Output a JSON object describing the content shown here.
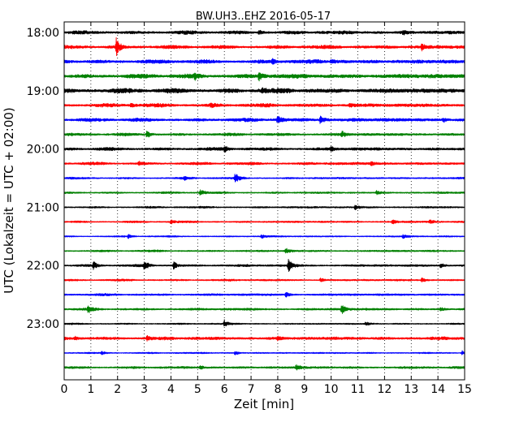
{
  "chart_data": {
    "type": "line",
    "title": "BW.UH3..EHZ 2016-05-17",
    "xlabel": "Zeit  [min]",
    "ylabel": "UTC (Lokalzeit = UTC + 02:00)",
    "xlim": [
      0,
      15
    ],
    "x_ticks": [
      "0",
      "1",
      "2",
      "3",
      "4",
      "5",
      "6",
      "7",
      "8",
      "9",
      "10",
      "11",
      "12",
      "13",
      "14",
      "15"
    ],
    "y_ticks": [
      {
        "label": "18:00",
        "trace_index": 0
      },
      {
        "label": "19:00",
        "trace_index": 4
      },
      {
        "label": "20:00",
        "trace_index": 8
      },
      {
        "label": "21:00",
        "trace_index": 12
      },
      {
        "label": "22:00",
        "trace_index": 16
      },
      {
        "label": "23:00",
        "trace_index": 20
      }
    ],
    "grid": {
      "x_vertical_dotted": true,
      "y": false
    },
    "trace_minutes": 15,
    "trace_colors": [
      "#000000",
      "#ff0000",
      "#0000ff",
      "#008000"
    ],
    "traces": [
      {
        "start": "18:00",
        "color": "#000000",
        "base_amplitude": 0.45,
        "events": [
          {
            "min": 7.3,
            "amp": 0.7
          },
          {
            "min": 12.7,
            "amp": 0.5
          }
        ]
      },
      {
        "start": "18:15",
        "color": "#ff0000",
        "base_amplitude": 0.45,
        "events": [
          {
            "min": 1.95,
            "amp": 2.4
          },
          {
            "min": 13.4,
            "amp": 0.8
          }
        ]
      },
      {
        "start": "18:30",
        "color": "#0000ff",
        "base_amplitude": 0.5,
        "events": [
          {
            "min": 7.8,
            "amp": 0.8
          },
          {
            "min": 10.0,
            "amp": 0.6
          }
        ]
      },
      {
        "start": "18:45",
        "color": "#008000",
        "base_amplitude": 0.55,
        "events": [
          {
            "min": 7.3,
            "amp": 1.3
          },
          {
            "min": 4.9,
            "amp": 0.6
          }
        ]
      },
      {
        "start": "19:00",
        "color": "#000000",
        "base_amplitude": 0.6,
        "events": [
          {
            "min": 7.4,
            "amp": 0.8
          }
        ]
      },
      {
        "start": "19:15",
        "color": "#ff0000",
        "base_amplitude": 0.45,
        "events": [
          {
            "min": 2.5,
            "amp": 0.5
          },
          {
            "min": 5.5,
            "amp": 0.6
          },
          {
            "min": 10.7,
            "amp": 0.5
          }
        ]
      },
      {
        "start": "19:30",
        "color": "#0000ff",
        "base_amplitude": 0.45,
        "events": [
          {
            "min": 8.0,
            "amp": 1.2
          },
          {
            "min": 9.6,
            "amp": 1.3
          },
          {
            "min": 14.2,
            "amp": 0.6
          }
        ]
      },
      {
        "start": "19:45",
        "color": "#008000",
        "base_amplitude": 0.35,
        "events": [
          {
            "min": 3.1,
            "amp": 1.0
          },
          {
            "min": 10.4,
            "amp": 0.9
          }
        ]
      },
      {
        "start": "20:00",
        "color": "#000000",
        "base_amplitude": 0.4,
        "events": [
          {
            "min": 6.0,
            "amp": 0.7
          },
          {
            "min": 10.0,
            "amp": 0.6
          }
        ]
      },
      {
        "start": "20:15",
        "color": "#ff0000",
        "base_amplitude": 0.35,
        "events": [
          {
            "min": 2.8,
            "amp": 0.5
          },
          {
            "min": 11.5,
            "amp": 0.6
          }
        ]
      },
      {
        "start": "20:30",
        "color": "#0000ff",
        "base_amplitude": 0.25,
        "events": [
          {
            "min": 6.4,
            "amp": 1.5
          },
          {
            "min": 4.5,
            "amp": 0.5
          }
        ]
      },
      {
        "start": "20:45",
        "color": "#008000",
        "base_amplitude": 0.25,
        "events": [
          {
            "min": 5.1,
            "amp": 0.9
          },
          {
            "min": 11.7,
            "amp": 0.5
          }
        ]
      },
      {
        "start": "21:00",
        "color": "#000000",
        "base_amplitude": 0.25,
        "events": [
          {
            "min": 10.9,
            "amp": 0.8
          }
        ]
      },
      {
        "start": "21:15",
        "color": "#ff0000",
        "base_amplitude": 0.25,
        "events": [
          {
            "min": 4.0,
            "amp": 0.5
          },
          {
            "min": 12.3,
            "amp": 0.6
          },
          {
            "min": 13.7,
            "amp": 0.5
          }
        ]
      },
      {
        "start": "21:30",
        "color": "#0000ff",
        "base_amplitude": 0.2,
        "events": [
          {
            "min": 2.4,
            "amp": 0.6
          },
          {
            "min": 7.4,
            "amp": 0.5
          },
          {
            "min": 12.7,
            "amp": 0.6
          }
        ]
      },
      {
        "start": "21:45",
        "color": "#008000",
        "base_amplitude": 0.25,
        "events": [
          {
            "min": 8.3,
            "amp": 0.7
          }
        ]
      },
      {
        "start": "22:00",
        "color": "#000000",
        "base_amplitude": 0.3,
        "events": [
          {
            "min": 1.1,
            "amp": 1.0
          },
          {
            "min": 3.0,
            "amp": 1.5
          },
          {
            "min": 4.1,
            "amp": 1.2
          },
          {
            "min": 8.4,
            "amp": 1.9
          },
          {
            "min": 14.1,
            "amp": 0.6
          }
        ]
      },
      {
        "start": "22:15",
        "color": "#ff0000",
        "base_amplitude": 0.25,
        "events": [
          {
            "min": 9.6,
            "amp": 0.6
          },
          {
            "min": 13.4,
            "amp": 0.6
          }
        ]
      },
      {
        "start": "22:30",
        "color": "#0000ff",
        "base_amplitude": 0.3,
        "events": [
          {
            "min": 8.3,
            "amp": 0.7
          }
        ]
      },
      {
        "start": "22:45",
        "color": "#008000",
        "base_amplitude": 0.3,
        "events": [
          {
            "min": 0.9,
            "amp": 1.0
          },
          {
            "min": 10.4,
            "amp": 1.4
          },
          {
            "min": 14.1,
            "amp": 0.5
          }
        ]
      },
      {
        "start": "23:00",
        "color": "#000000",
        "base_amplitude": 0.2,
        "events": [
          {
            "min": 6.0,
            "amp": 1.0
          },
          {
            "min": 11.3,
            "amp": 0.5
          }
        ]
      },
      {
        "start": "23:15",
        "color": "#ff0000",
        "base_amplitude": 0.4,
        "events": [
          {
            "min": 3.1,
            "amp": 0.6
          },
          {
            "min": 0.4,
            "amp": 0.5
          },
          {
            "min": 8.0,
            "amp": 0.5
          }
        ]
      },
      {
        "start": "23:30",
        "color": "#0000ff",
        "base_amplitude": 0.2,
        "events": [
          {
            "min": 1.4,
            "amp": 0.5
          },
          {
            "min": 6.4,
            "amp": 0.6
          },
          {
            "min": 14.9,
            "amp": 0.6
          }
        ]
      },
      {
        "start": "23:45",
        "color": "#008000",
        "base_amplitude": 0.3,
        "events": [
          {
            "min": 8.7,
            "amp": 0.8
          },
          {
            "min": 5.1,
            "amp": 0.5
          }
        ]
      }
    ]
  }
}
